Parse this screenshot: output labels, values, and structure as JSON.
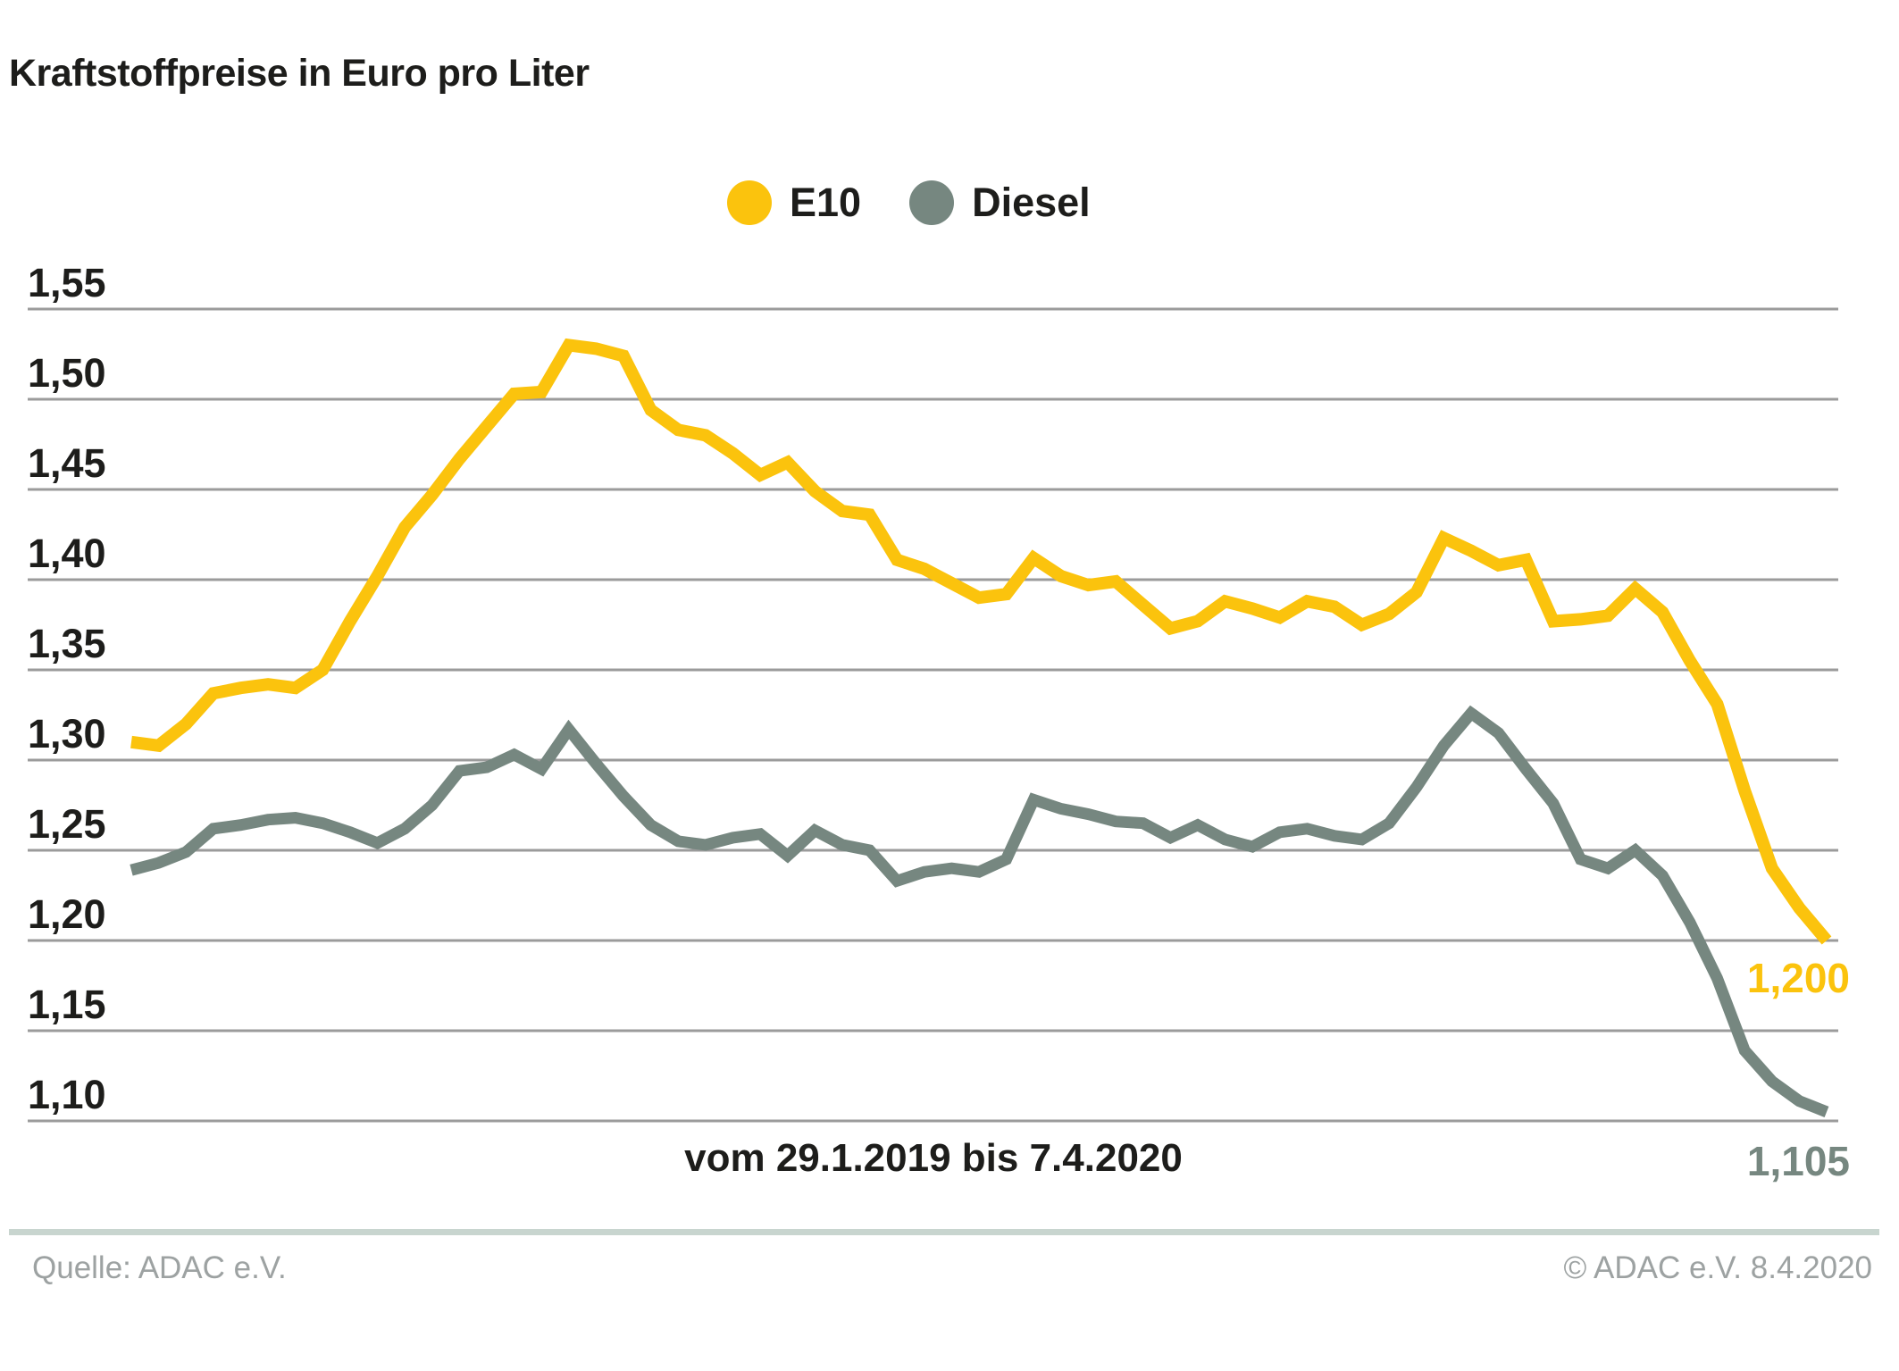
{
  "title": "Kraftstoffpreise in Euro pro Liter",
  "legend": {
    "items": [
      {
        "label": "E10",
        "color": "#FBC30D"
      },
      {
        "label": "Diesel",
        "color": "#768780"
      }
    ]
  },
  "footer": {
    "source": "Quelle: ADAC e.V.",
    "copyright": "© ADAC e.V. 8.4.2020"
  },
  "colors": {
    "e10": "#FBC30D",
    "diesel": "#768780",
    "gridline": "#9B9B9B",
    "divider": "#C8D5CF",
    "text_dark": "#1d1d1b",
    "text_muted": "#9DA2A2"
  },
  "chart_data": {
    "type": "line",
    "title": "Kraftstoffpreise in Euro pro Liter",
    "xlabel": "vom 29.1.2019 bis 7.4.2020",
    "ylabel": "Euro pro Liter",
    "x_start": "29.1.2019",
    "x_end": "7.4.2020",
    "x_interval": "weekly",
    "n_points": 63,
    "ylim": [
      1.1,
      1.55
    ],
    "grid": true,
    "legend_position": "top-center",
    "y_ticks": [
      {
        "label": "1,55",
        "value": 1.55
      },
      {
        "label": "1,50",
        "value": 1.5
      },
      {
        "label": "1,45",
        "value": 1.45
      },
      {
        "label": "1,40",
        "value": 1.4
      },
      {
        "label": "1,35",
        "value": 1.35
      },
      {
        "label": "1,30",
        "value": 1.3
      },
      {
        "label": "1,25",
        "value": 1.25
      },
      {
        "label": "1,20",
        "value": 1.2
      },
      {
        "label": "1,15",
        "value": 1.15
      },
      {
        "label": "1,10",
        "value": 1.1
      }
    ],
    "series": [
      {
        "name": "E10",
        "color": "#FBC30D",
        "end_label": "1,200",
        "end_value": 1.2,
        "values": [
          1.31,
          1.308,
          1.32,
          1.337,
          1.34,
          1.342,
          1.34,
          1.35,
          1.377,
          1.402,
          1.429,
          1.447,
          1.467,
          1.485,
          1.503,
          1.504,
          1.53,
          1.528,
          1.524,
          1.494,
          1.483,
          1.48,
          1.47,
          1.458,
          1.465,
          1.449,
          1.438,
          1.436,
          1.411,
          1.406,
          1.398,
          1.39,
          1.392,
          1.412,
          1.402,
          1.397,
          1.399,
          1.386,
          1.373,
          1.377,
          1.388,
          1.384,
          1.379,
          1.388,
          1.385,
          1.375,
          1.381,
          1.393,
          1.423,
          1.416,
          1.408,
          1.411,
          1.377,
          1.378,
          1.38,
          1.395,
          1.382,
          1.355,
          1.331,
          1.283,
          1.24,
          1.218,
          1.2
        ]
      },
      {
        "name": "Diesel",
        "color": "#768780",
        "end_label": "1,105",
        "end_value": 1.105,
        "values": [
          1.239,
          1.243,
          1.249,
          1.262,
          1.264,
          1.267,
          1.268,
          1.265,
          1.26,
          1.254,
          1.262,
          1.275,
          1.294,
          1.296,
          1.303,
          1.295,
          1.317,
          1.298,
          1.28,
          1.264,
          1.255,
          1.253,
          1.257,
          1.259,
          1.247,
          1.261,
          1.253,
          1.25,
          1.233,
          1.238,
          1.24,
          1.238,
          1.245,
          1.278,
          1.273,
          1.27,
          1.266,
          1.265,
          1.257,
          1.264,
          1.256,
          1.252,
          1.26,
          1.262,
          1.258,
          1.256,
          1.265,
          1.285,
          1.308,
          1.326,
          1.315,
          1.295,
          1.276,
          1.245,
          1.24,
          1.25,
          1.236,
          1.21,
          1.179,
          1.139,
          1.122,
          1.111,
          1.105
        ]
      }
    ]
  }
}
